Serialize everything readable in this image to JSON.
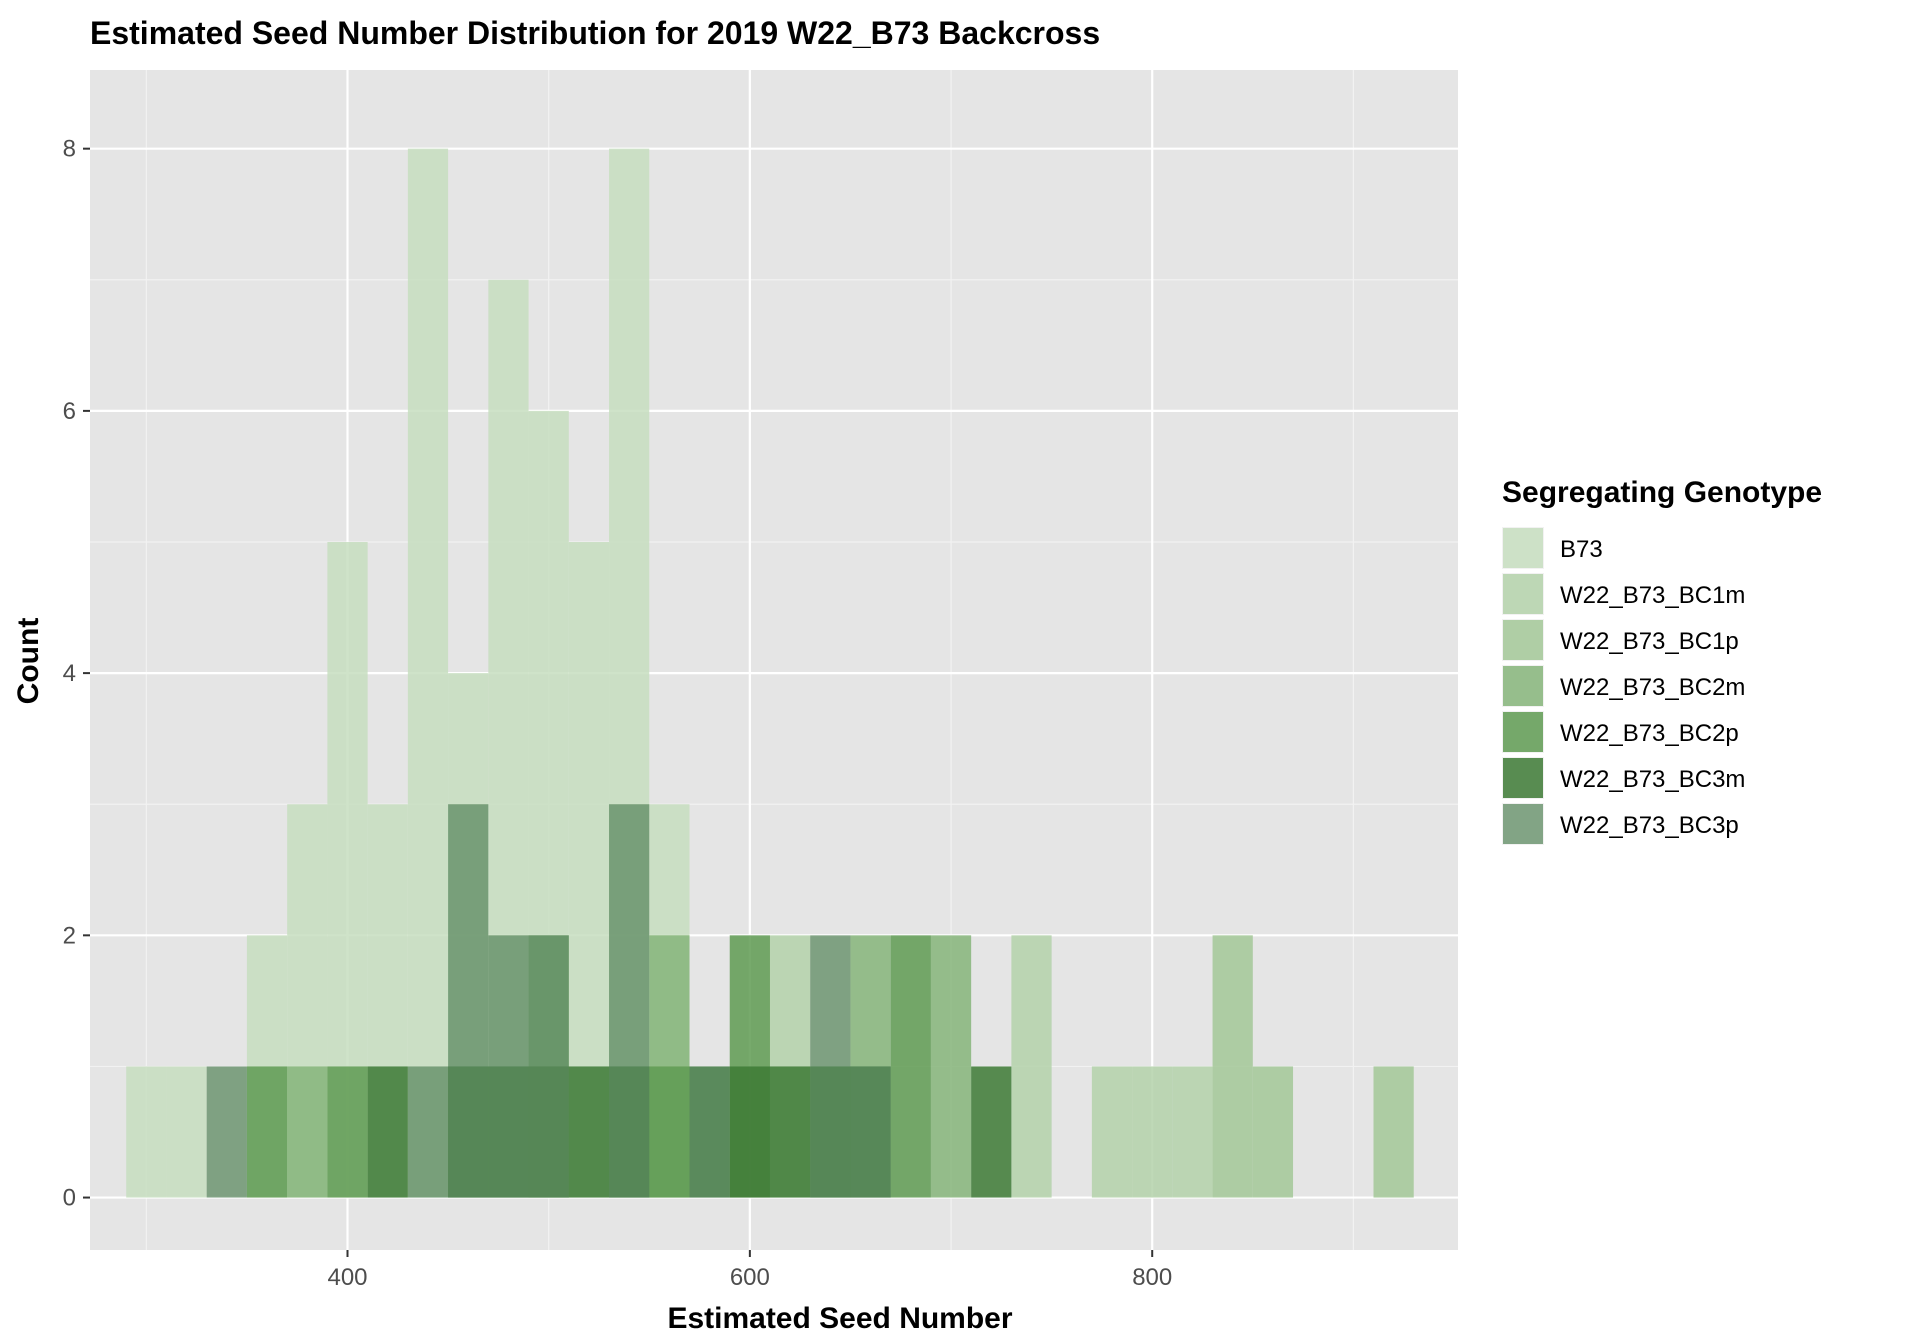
{
  "chart_data": {
    "type": "histogram",
    "title": "Estimated Seed Number Distribution for 2019 W22_B73 Backcross",
    "xlabel": "Estimated Seed Number",
    "ylabel": "Count",
    "xlim": [
      272,
      952
    ],
    "ylim": [
      -0.4,
      8.6
    ],
    "x_ticks": [
      400,
      600,
      800
    ],
    "y_ticks": [
      0,
      2,
      4,
      6,
      8
    ],
    "bin_width": 20,
    "legend": {
      "title": "Segregating Genotype",
      "position": "right"
    },
    "series": [
      {
        "name": "B73",
        "color": "#c7deC0",
        "alpha": 0.85,
        "bars": [
          [
            300,
            1
          ],
          [
            320,
            1
          ],
          [
            360,
            2
          ],
          [
            380,
            3
          ],
          [
            400,
            5
          ],
          [
            420,
            3
          ],
          [
            440,
            8
          ],
          [
            460,
            4
          ],
          [
            480,
            7
          ],
          [
            500,
            6
          ],
          [
            520,
            5
          ],
          [
            540,
            8
          ],
          [
            560,
            3
          ]
        ]
      },
      {
        "name": "W22_B73_BC1m",
        "color": "#b4d2aa",
        "alpha": 0.85,
        "bars": [
          [
            620,
            2
          ],
          [
            740,
            2
          ],
          [
            780,
            1
          ],
          [
            800,
            1
          ],
          [
            820,
            1
          ]
        ]
      },
      {
        "name": "W22_B73_BC1p",
        "color": "#a3c898",
        "alpha": 0.85,
        "bars": [
          [
            840,
            2
          ],
          [
            860,
            1
          ],
          [
            920,
            1
          ]
        ]
      },
      {
        "name": "W22_B73_BC2m",
        "color": "#86b57a",
        "alpha": 0.85,
        "bars": [
          [
            380,
            1
          ],
          [
            500,
            2
          ],
          [
            560,
            2
          ],
          [
            660,
            2
          ],
          [
            700,
            2
          ]
        ]
      },
      {
        "name": "W22_B73_BC2p",
        "color": "#5f9b52",
        "alpha": 0.85,
        "bars": [
          [
            360,
            1
          ],
          [
            400,
            1
          ],
          [
            460,
            1
          ],
          [
            480,
            1
          ],
          [
            500,
            1
          ],
          [
            540,
            1
          ],
          [
            560,
            1
          ],
          [
            600,
            2
          ],
          [
            640,
            1
          ],
          [
            680,
            2
          ]
        ]
      },
      {
        "name": "W22_B73_BC3m",
        "color": "#3d7a35",
        "alpha": 0.85,
        "bars": [
          [
            420,
            1
          ],
          [
            460,
            1
          ],
          [
            480,
            1
          ],
          [
            500,
            1
          ],
          [
            520,
            1
          ],
          [
            540,
            1
          ],
          [
            580,
            1
          ],
          [
            600,
            1
          ],
          [
            620,
            1
          ],
          [
            640,
            1
          ],
          [
            660,
            1
          ],
          [
            720,
            1
          ]
        ]
      },
      {
        "name": "W22_B73_BC3p",
        "color": "#5c8a60",
        "alpha": 0.75,
        "bars": [
          [
            340,
            1
          ],
          [
            440,
            1
          ],
          [
            460,
            3
          ],
          [
            480,
            2
          ],
          [
            500,
            2
          ],
          [
            540,
            3
          ],
          [
            580,
            1
          ],
          [
            640,
            2
          ],
          [
            660,
            1
          ]
        ]
      }
    ]
  }
}
